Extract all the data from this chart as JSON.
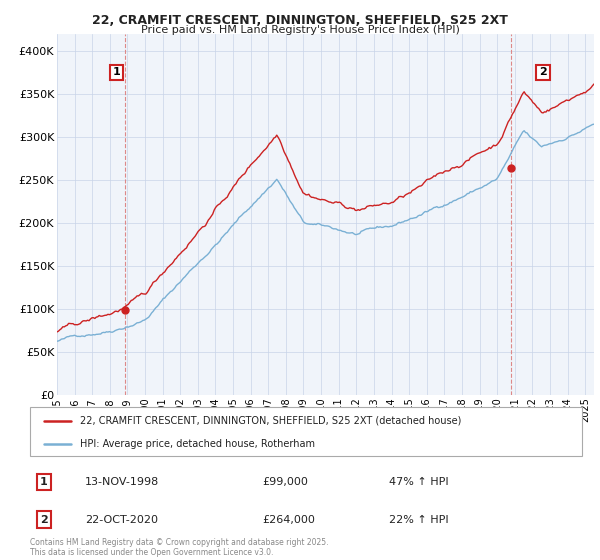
{
  "title": "22, CRAMFIT CRESCENT, DINNINGTON, SHEFFIELD, S25 2XT",
  "subtitle": "Price paid vs. HM Land Registry's House Price Index (HPI)",
  "legend_line1": "22, CRAMFIT CRESCENT, DINNINGTON, SHEFFIELD, S25 2XT (detached house)",
  "legend_line2": "HPI: Average price, detached house, Rotherham",
  "annotation1_label": "1",
  "annotation1_date": "13-NOV-1998",
  "annotation1_price": "£99,000",
  "annotation1_hpi": "47% ↑ HPI",
  "annotation2_label": "2",
  "annotation2_date": "22-OCT-2020",
  "annotation2_price": "£264,000",
  "annotation2_hpi": "22% ↑ HPI",
  "footnote": "Contains HM Land Registry data © Crown copyright and database right 2025.\nThis data is licensed under the Open Government Licence v3.0.",
  "red_color": "#cc2222",
  "blue_color": "#7ab0d4",
  "dashed_color": "#dd8888",
  "background_color": "#f0f4fa",
  "grid_color": "#c8d4e8",
  "ylim": [
    0,
    420000
  ],
  "yticks": [
    0,
    50000,
    100000,
    150000,
    200000,
    250000,
    300000,
    350000,
    400000
  ],
  "ytick_labels": [
    "£0",
    "£50K",
    "£100K",
    "£150K",
    "£200K",
    "£250K",
    "£300K",
    "£350K",
    "£400K"
  ],
  "sale1_x": 1998.87,
  "sale1_y": 99000,
  "sale2_x": 2020.8,
  "sale2_y": 264000,
  "xmin": 1995,
  "xmax": 2025.5
}
